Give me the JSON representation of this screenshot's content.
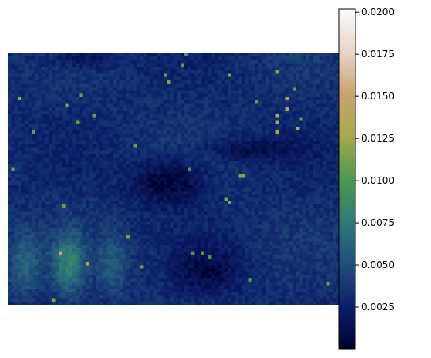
{
  "chart_data": {
    "type": "heatmap",
    "title": "",
    "xlabel": "",
    "ylabel": "",
    "axes_visible": false,
    "colormap": "gist_earth",
    "colormap_stops": [
      "#000031",
      "#0d1f6b",
      "#1f4f7a",
      "#2f7a78",
      "#4c9a4c",
      "#a8a94a",
      "#c8a46e",
      "#e8d6c6",
      "#fdfbfb"
    ],
    "value_range": [
      0.0,
      0.0202
    ],
    "colorbar": {
      "position": "right",
      "ticks": [
        0.0025,
        0.005,
        0.0075,
        0.01,
        0.0125,
        0.015,
        0.0175,
        0.02
      ],
      "tick_labels": [
        "0.0025",
        "0.0050",
        "0.0075",
        "0.0100",
        "0.0125",
        "0.0150",
        "0.0175",
        "0.0200"
      ]
    },
    "grid_size": [
      100,
      75
    ],
    "regions": [
      {
        "description": "dark low-value band, center",
        "level": 0.0005
      },
      {
        "description": "dark low-value band, lower middle",
        "level": 0.0008
      },
      {
        "description": "green high-value strip, bottom left",
        "level": 0.0075
      },
      {
        "description": "bright specks along upper right boundary",
        "level": 0.013
      }
    ],
    "background_level": 0.0032
  }
}
